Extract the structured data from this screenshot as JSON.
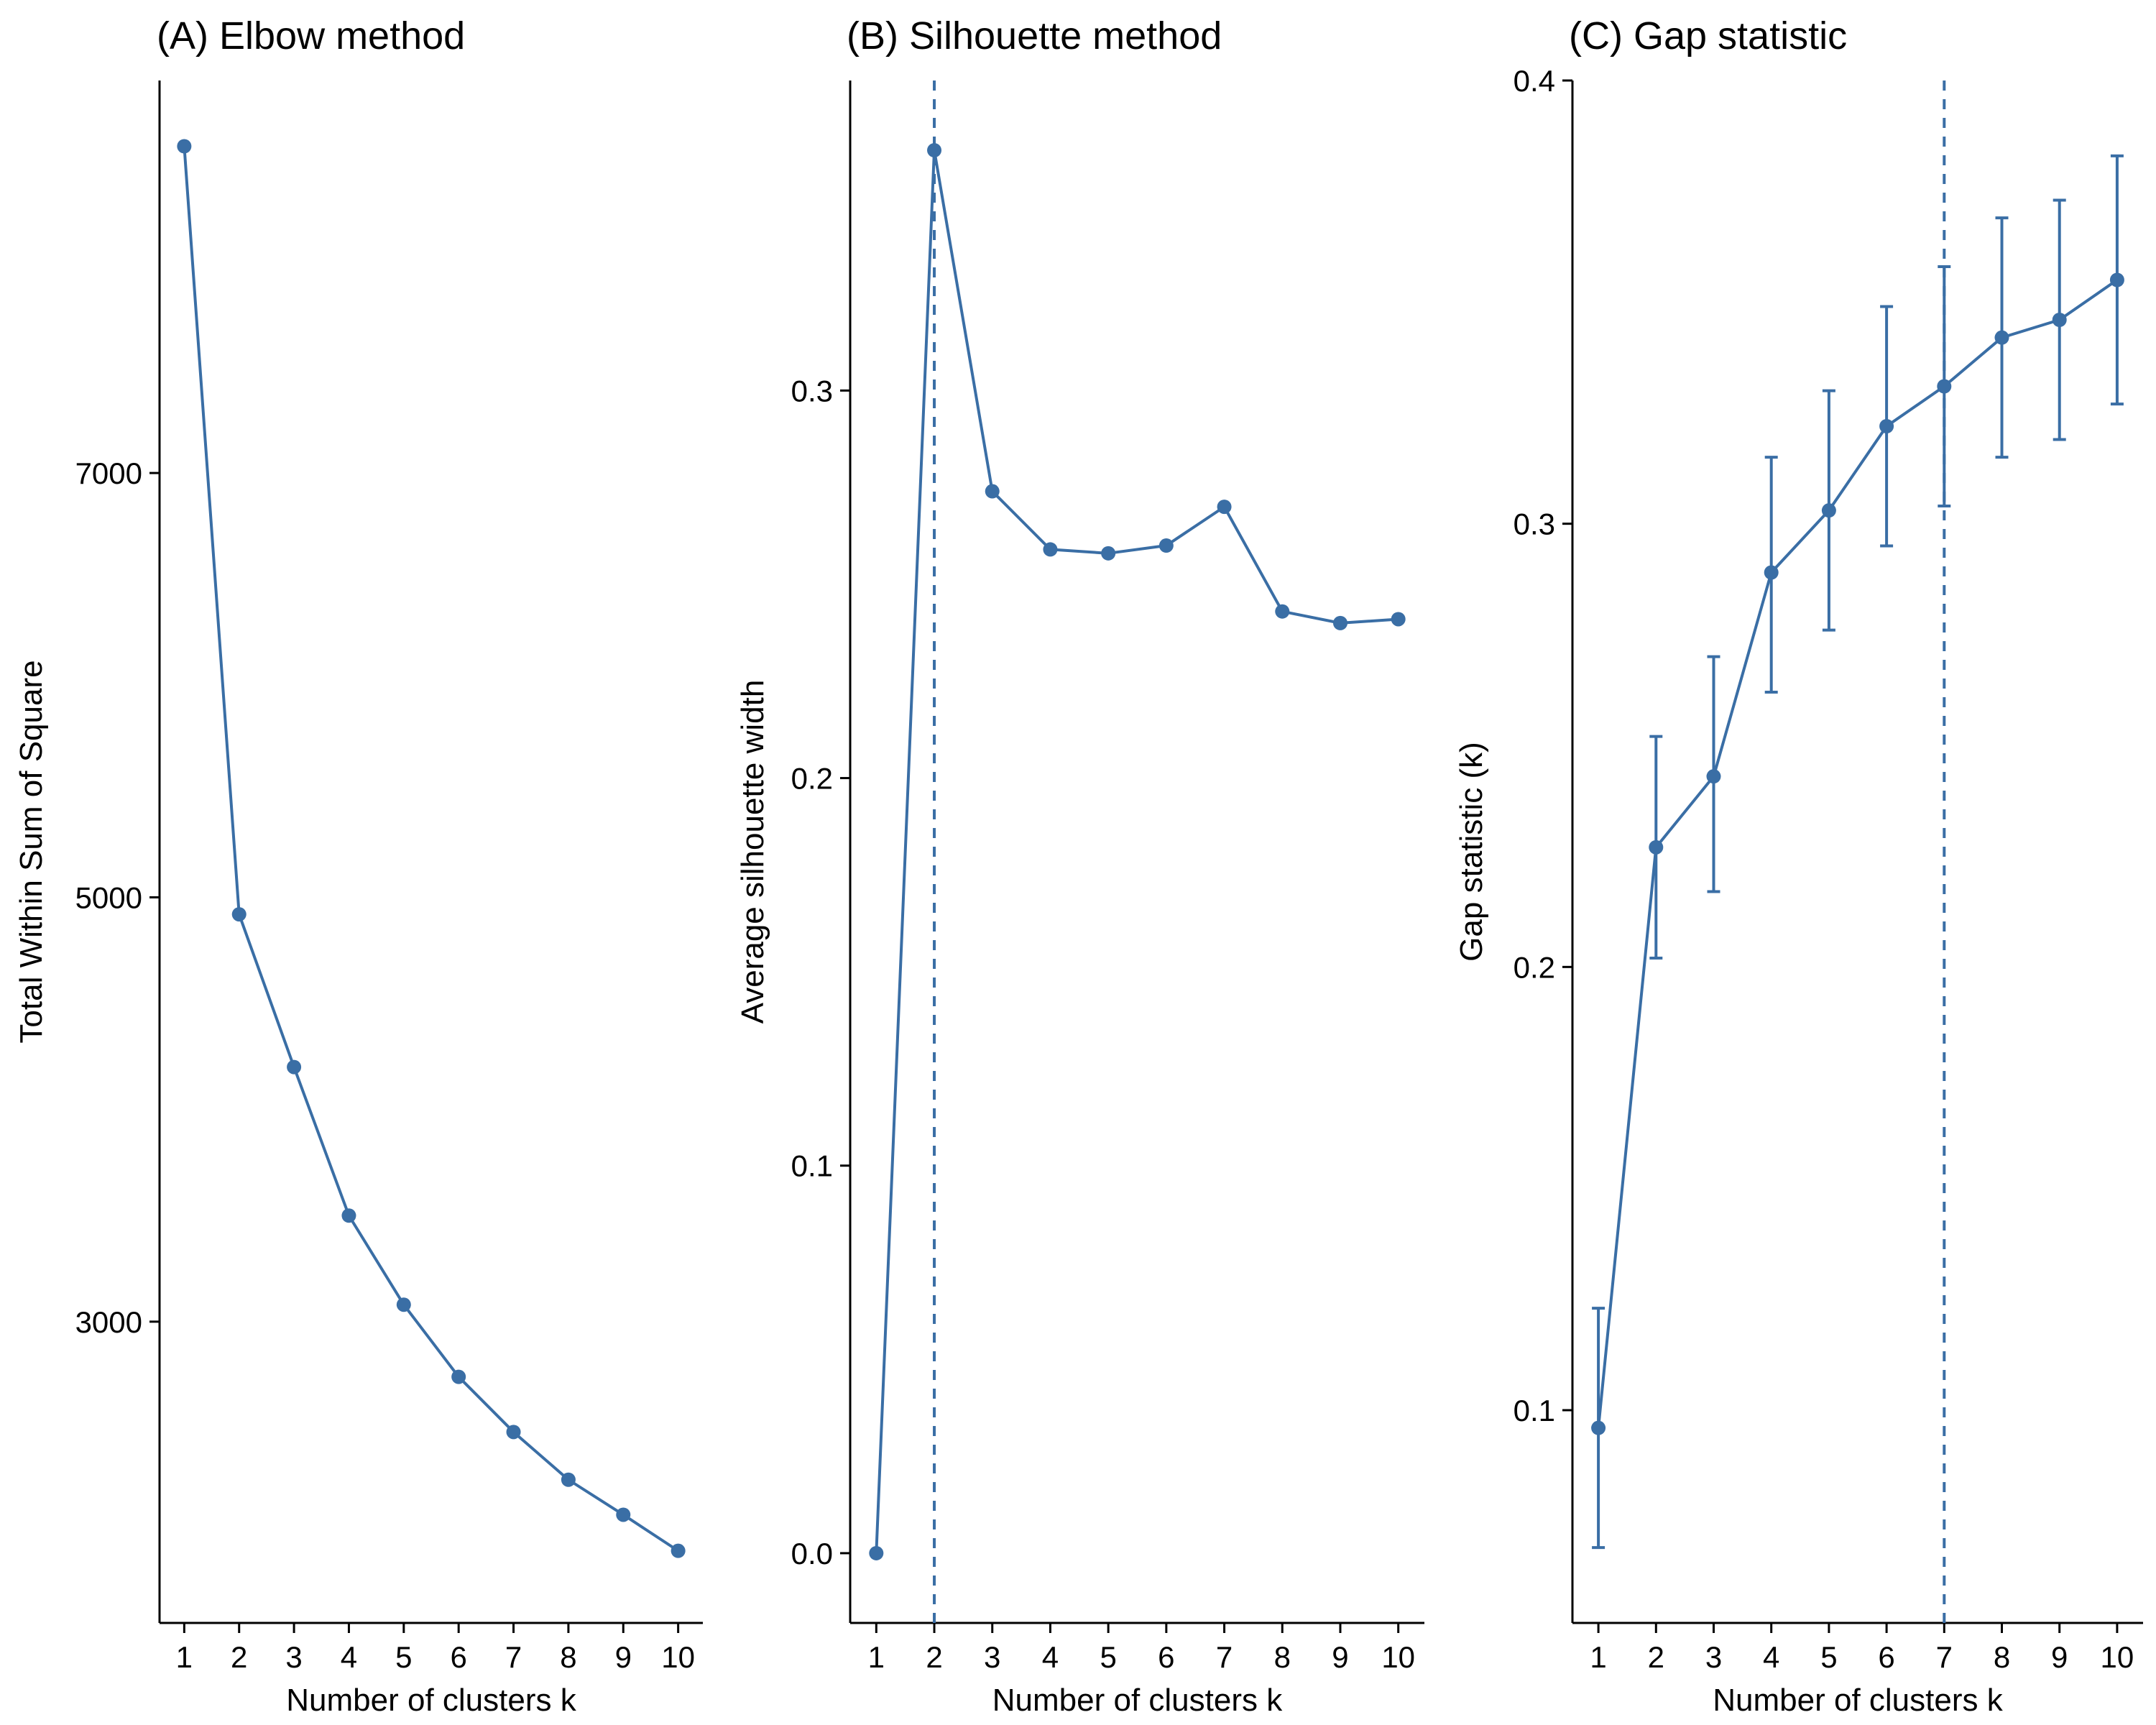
{
  "accent_color": "#3a6ea5",
  "chart_data": [
    {
      "type": "line",
      "title": "(A) Elbow method",
      "xlabel": "Number of clusters k",
      "ylabel": "Total Within Sum of Square",
      "x": [
        1,
        2,
        3,
        4,
        5,
        6,
        7,
        8,
        9,
        10
      ],
      "series": [
        {
          "values": [
            8540,
            4920,
            4200,
            3500,
            3080,
            2740,
            2480,
            2255,
            2090,
            1920
          ]
        }
      ],
      "xticks": [
        "1",
        "2",
        "3",
        "4",
        "5",
        "6",
        "7",
        "8",
        "9",
        "10"
      ],
      "yticks": [
        3000,
        5000,
        7000
      ],
      "xlim": [
        0.55,
        10.45
      ],
      "ylim": [
        1580,
        8850
      ],
      "grid": false,
      "legend": "none"
    },
    {
      "type": "line",
      "title": "(B) Silhouette method",
      "xlabel": "Number of clusters k",
      "ylabel": "Average silhouette width",
      "x": [
        1,
        2,
        3,
        4,
        5,
        6,
        7,
        8,
        9,
        10
      ],
      "series": [
        {
          "values": [
            0.0,
            0.362,
            0.274,
            0.259,
            0.258,
            0.26,
            0.27,
            0.243,
            0.24,
            0.241
          ]
        }
      ],
      "xticks": [
        "1",
        "2",
        "3",
        "4",
        "5",
        "6",
        "7",
        "8",
        "9",
        "10"
      ],
      "yticks": [
        "0.0",
        "0.1",
        "0.2",
        "0.3"
      ],
      "xlim": [
        0.55,
        10.45
      ],
      "ylim": [
        -0.018,
        0.38
      ],
      "vline": 2,
      "grid": false,
      "legend": "none"
    },
    {
      "type": "line",
      "title": "(C) Gap statistic",
      "xlabel": "Number of clusters k",
      "ylabel": "Gap statistic (k)",
      "x": [
        1,
        2,
        3,
        4,
        5,
        6,
        7,
        8,
        9,
        10
      ],
      "series": [
        {
          "values": [
            0.096,
            0.227,
            0.243,
            0.289,
            0.303,
            0.322,
            0.331,
            0.342,
            0.346,
            0.355
          ],
          "err_low": [
            0.069,
            0.202,
            0.217,
            0.262,
            0.276,
            0.295,
            0.304,
            0.315,
            0.319,
            0.327
          ],
          "err_high": [
            0.123,
            0.252,
            0.27,
            0.315,
            0.33,
            0.349,
            0.358,
            0.369,
            0.373,
            0.383
          ]
        }
      ],
      "xticks": [
        "1",
        "2",
        "3",
        "4",
        "5",
        "6",
        "7",
        "8",
        "9",
        "10"
      ],
      "yticks": [
        "0.1",
        "0.2",
        "0.3",
        "0.4"
      ],
      "xlim": [
        0.55,
        10.45
      ],
      "ylim": [
        0.052,
        0.4
      ],
      "vline": 7,
      "grid": false,
      "legend": "none"
    }
  ]
}
